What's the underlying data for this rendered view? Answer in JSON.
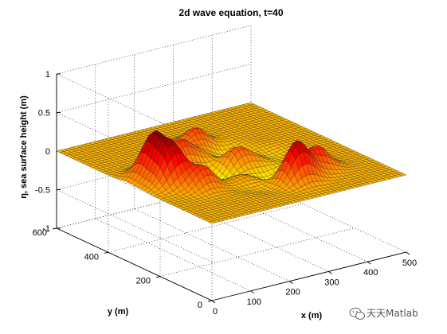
{
  "chart_data": {
    "type": "surface",
    "title": "2d wave equation, t=40",
    "xlabel": "x (m)",
    "ylabel": "y (m)",
    "zlabel": "η, sea surface height (m)",
    "xlim": [
      0,
      500
    ],
    "ylim": [
      0,
      600
    ],
    "zlim": [
      -1,
      1
    ],
    "xticks": [
      "0",
      "100",
      "200",
      "300",
      "400",
      "500"
    ],
    "yticks": [
      "0",
      "200",
      "400",
      "600"
    ],
    "zticks": [
      "-1",
      "-0.5",
      "0",
      "0.5",
      "1"
    ],
    "grid": true,
    "colormap": "jet",
    "color_range": [
      -0.5,
      0.5
    ],
    "surface_features": [
      {
        "x": 70,
        "y": 330,
        "height": 0.55
      },
      {
        "x": 75,
        "y": 270,
        "height": 0.5
      },
      {
        "x": 300,
        "y": 120,
        "height": 0.5
      },
      {
        "x": 370,
        "y": 150,
        "height": 0.3
      },
      {
        "x": 170,
        "y": 380,
        "height": 0.3
      },
      {
        "x": 250,
        "y": 440,
        "height": 0.25
      },
      {
        "x": 250,
        "y": 300,
        "height": 0.25
      },
      {
        "x": 120,
        "y": 210,
        "height": 0.3
      }
    ]
  },
  "watermark": {
    "icon": "wechat-icon",
    "text": "天天Matlab"
  }
}
